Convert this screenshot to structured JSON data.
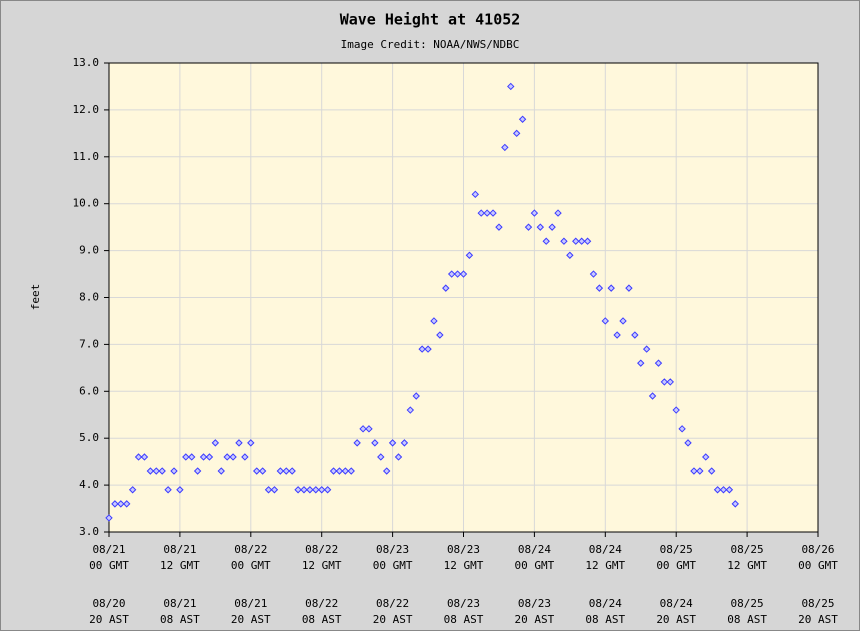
{
  "chart_data": {
    "type": "scatter",
    "title": "Wave Height at 41052",
    "subtitle": "Image Credit: NOAA/NWS/NDBC",
    "ylabel": "feet",
    "color": "#3c3cff",
    "grid": true,
    "xlim": [
      0,
      120
    ],
    "ylim": [
      3,
      13
    ],
    "yticks": [
      {
        "value": 3,
        "label": "3.0"
      },
      {
        "value": 4,
        "label": "4.0"
      },
      {
        "value": 5,
        "label": "5.0"
      },
      {
        "value": 6,
        "label": "6.0"
      },
      {
        "value": 7,
        "label": "7.0"
      },
      {
        "value": 8,
        "label": "8.0"
      },
      {
        "value": 9,
        "label": "9.0"
      },
      {
        "value": 10,
        "label": "10.0"
      },
      {
        "value": 11,
        "label": "11.0"
      },
      {
        "value": 12,
        "label": "12.0"
      },
      {
        "value": 13,
        "label": "13.0"
      }
    ],
    "xticks": [
      {
        "value": 0,
        "label": [
          "08/21",
          "00 GMT"
        ]
      },
      {
        "value": 12,
        "label": [
          "08/21",
          "12 GMT"
        ]
      },
      {
        "value": 24,
        "label": [
          "08/22",
          "00 GMT"
        ]
      },
      {
        "value": 36,
        "label": [
          "08/22",
          "12 GMT"
        ]
      },
      {
        "value": 48,
        "label": [
          "08/23",
          "00 GMT"
        ]
      },
      {
        "value": 60,
        "label": [
          "08/23",
          "12 GMT"
        ]
      },
      {
        "value": 72,
        "label": [
          "08/24",
          "00 GMT"
        ]
      },
      {
        "value": 84,
        "label": [
          "08/24",
          "12 GMT"
        ]
      },
      {
        "value": 96,
        "label": [
          "08/25",
          "00 GMT"
        ]
      },
      {
        "value": 108,
        "label": [
          "08/25",
          "12 GMT"
        ]
      },
      {
        "value": 120,
        "label": [
          "08/26",
          "00 GMT"
        ]
      }
    ],
    "x2ticks": [
      {
        "value": 0,
        "label": [
          "08/20",
          "20 AST"
        ]
      },
      {
        "value": 12,
        "label": [
          "08/21",
          "08 AST"
        ]
      },
      {
        "value": 24,
        "label": [
          "08/21",
          "20 AST"
        ]
      },
      {
        "value": 36,
        "label": [
          "08/22",
          "08 AST"
        ]
      },
      {
        "value": 48,
        "label": [
          "08/22",
          "20 AST"
        ]
      },
      {
        "value": 60,
        "label": [
          "08/23",
          "08 AST"
        ]
      },
      {
        "value": 72,
        "label": [
          "08/23",
          "20 AST"
        ]
      },
      {
        "value": 84,
        "label": [
          "08/24",
          "08 AST"
        ]
      },
      {
        "value": 96,
        "label": [
          "08/24",
          "20 AST"
        ]
      },
      {
        "value": 108,
        "label": [
          "08/25",
          "08 AST"
        ]
      },
      {
        "value": 120,
        "label": [
          "08/25",
          "20 AST"
        ]
      }
    ],
    "x": [
      0,
      1,
      2,
      3,
      4,
      5,
      6,
      7,
      8,
      9,
      10,
      11,
      12,
      13,
      14,
      15,
      16,
      17,
      18,
      19,
      20,
      21,
      22,
      23,
      24,
      25,
      26,
      27,
      28,
      29,
      30,
      31,
      32,
      33,
      34,
      35,
      36,
      37,
      38,
      39,
      40,
      41,
      42,
      43,
      44,
      45,
      46,
      47,
      48,
      49,
      50,
      51,
      52,
      53,
      54,
      55,
      56,
      57,
      58,
      59,
      60,
      61,
      62,
      63,
      64,
      65,
      66,
      67,
      68,
      69,
      70,
      71,
      72,
      73,
      74,
      75,
      76,
      77,
      78,
      79,
      80,
      81,
      82,
      83,
      84,
      85,
      86,
      87,
      88,
      89,
      90,
      91,
      92,
      93,
      94,
      95,
      96,
      97,
      98,
      99,
      100,
      101,
      102,
      103,
      104,
      105,
      106
    ],
    "values": [
      3.3,
      3.6,
      3.6,
      3.6,
      3.9,
      4.6,
      4.6,
      4.3,
      4.3,
      4.3,
      3.9,
      4.3,
      3.9,
      4.6,
      4.6,
      4.3,
      4.6,
      4.6,
      4.9,
      4.3,
      4.6,
      4.6,
      4.9,
      4.6,
      4.9,
      4.3,
      4.3,
      3.9,
      3.9,
      4.3,
      4.3,
      4.3,
      3.9,
      3.9,
      3.9,
      3.9,
      3.9,
      3.9,
      4.3,
      4.3,
      4.3,
      4.3,
      4.9,
      5.2,
      5.2,
      4.9,
      4.6,
      4.3,
      4.9,
      4.6,
      4.9,
      5.6,
      5.9,
      6.9,
      6.9,
      7.5,
      7.2,
      8.2,
      8.5,
      8.5,
      8.5,
      8.9,
      10.2,
      9.8,
      9.8,
      9.8,
      9.5,
      11.2,
      12.5,
      11.5,
      11.8,
      9.5,
      9.8,
      9.5,
      9.2,
      9.5,
      9.8,
      9.2,
      8.9,
      9.2,
      9.2,
      9.2,
      8.5,
      8.2,
      7.5,
      8.2,
      7.2,
      7.5,
      8.2,
      7.2,
      6.6,
      6.9,
      5.9,
      6.6,
      6.2,
      6.2,
      5.6,
      5.2,
      4.9,
      4.3,
      4.3,
      4.6,
      4.3,
      3.9,
      3.9,
      3.9,
      3.6
    ]
  }
}
